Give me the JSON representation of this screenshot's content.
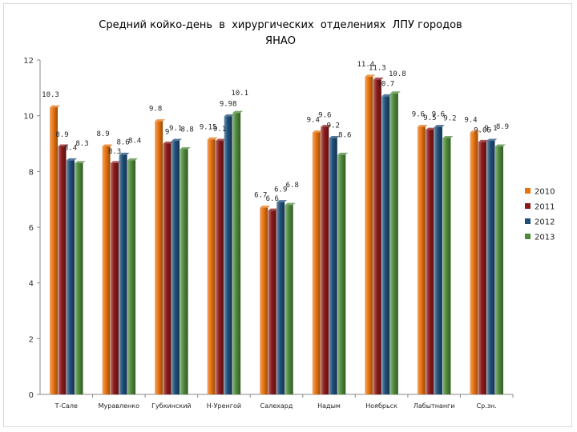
{
  "chart_data": {
    "type": "bar",
    "title": "Средний койко-день  в  хирургических  отделениях  ЛПУ городов\nЯНАО",
    "categories": [
      "Т-Сале",
      "Муравленко",
      "Губкинский",
      "Н-Уренгой",
      "Салехард",
      "Надым",
      "Ноябрьск",
      "Лабытнанги",
      "Ср.зн."
    ],
    "series": [
      {
        "name": "2010",
        "color": "#e8730f",
        "values": [
          10.3,
          8.9,
          9.8,
          9.15,
          6.7,
          9.4,
          11.4,
          9.6,
          9.4
        ]
      },
      {
        "name": "2011",
        "color": "#8b1a1a",
        "values": [
          8.9,
          8.3,
          9,
          9.1,
          6.6,
          9.6,
          11.3,
          9.5,
          9.06
        ]
      },
      {
        "name": "2012",
        "color": "#1f4e79",
        "values": [
          8.4,
          8.6,
          9.1,
          9.98,
          6.9,
          9.2,
          10.7,
          9.6,
          9.1
        ]
      },
      {
        "name": "2013",
        "color": "#4e8a3a",
        "values": [
          8.3,
          8.4,
          8.8,
          10.1,
          6.8,
          8.6,
          10.8,
          9.2,
          8.9
        ]
      }
    ],
    "data_labels": [
      [
        "10.3",
        "8.9",
        "9.8",
        "9.15",
        "6.7",
        "9.4",
        "11.4",
        "9.6",
        "9.4"
      ],
      [
        "8.9",
        "8.3",
        "9",
        "9.1",
        "6.6",
        "9.6",
        "11.3",
        "9.5",
        "9.06"
      ],
      [
        "8.4",
        "8.6",
        "9.1",
        "9.98",
        "6.9",
        "9.2",
        "10.7",
        "9.6",
        "9.1"
      ],
      [
        "8.3",
        "8.4",
        "8.8",
        "10.1",
        "6.8",
        "8.6",
        "10.8",
        "9.2",
        "8.9"
      ]
    ],
    "yticks": [
      "0",
      "2",
      "4",
      "6",
      "8",
      "10",
      "12"
    ],
    "ylim": [
      0,
      12
    ],
    "grid": false,
    "legend_position": "right"
  }
}
